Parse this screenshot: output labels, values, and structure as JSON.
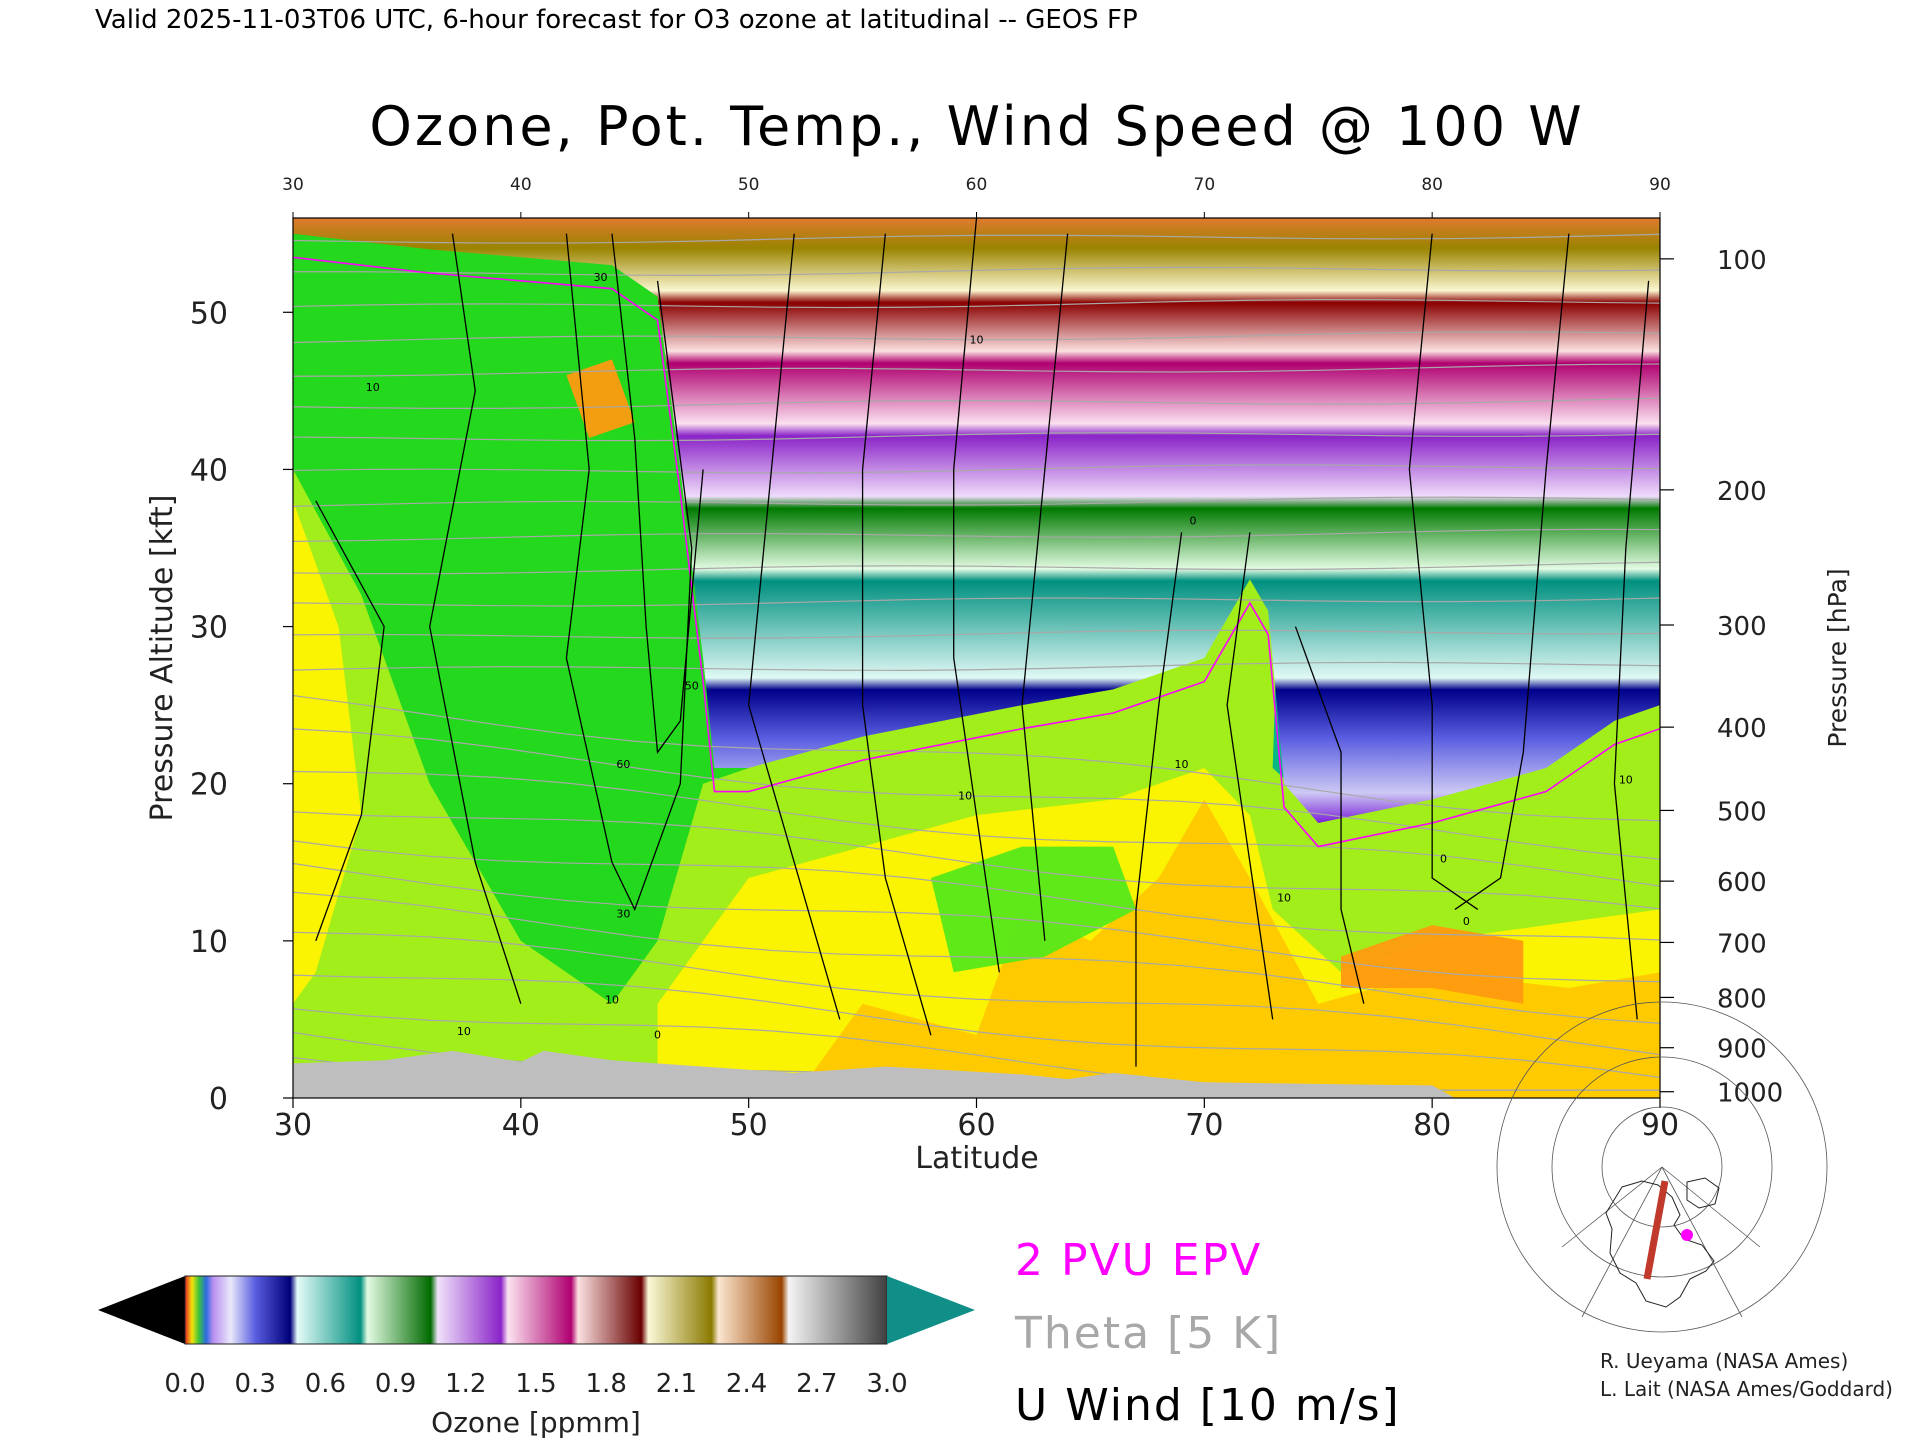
{
  "header": {
    "valid_line": "Valid 2025-11-03T06 UTC, 6-hour forecast for O3 ozone at latitudinal -- GEOS FP"
  },
  "chart_data": {
    "type": "heatmap",
    "title": "Ozone, Pot. Temp., Wind Speed @ 100 W",
    "xlabel": "Latitude",
    "ylabel_left": "Pressure Altitude [kft]",
    "ylabel_right": "Pressure [hPa]",
    "xlim": [
      30,
      90
    ],
    "ylim": [
      0,
      56
    ],
    "x_ticks": [
      "30",
      "40",
      "50",
      "60",
      "70",
      "80",
      "90"
    ],
    "y_ticks": [
      "0",
      "10",
      "20",
      "30",
      "40",
      "50"
    ],
    "y_tick_values": [
      0,
      10,
      20,
      30,
      40,
      50
    ],
    "pressure_ticks": [
      {
        "label": "100",
        "kft": 53.4
      },
      {
        "label": "200",
        "kft": 38.7
      },
      {
        "label": "300",
        "kft": 30.1
      },
      {
        "label": "400",
        "kft": 23.6
      },
      {
        "label": "500",
        "kft": 18.3
      },
      {
        "label": "600",
        "kft": 13.8
      },
      {
        "label": "700",
        "kft": 9.9
      },
      {
        "label": "800",
        "kft": 6.4
      },
      {
        "label": "900",
        "kft": 3.2
      },
      {
        "label": "1000",
        "kft": 0.4
      }
    ],
    "tropopause_kft": [
      {
        "lat": 30,
        "kft": 55
      },
      {
        "lat": 36,
        "kft": 54
      },
      {
        "lat": 40,
        "kft": 53.5
      },
      {
        "lat": 44,
        "kft": 53
      },
      {
        "lat": 46,
        "kft": 51
      },
      {
        "lat": 47,
        "kft": 40
      },
      {
        "lat": 48,
        "kft": 28
      },
      {
        "lat": 48.5,
        "kft": 21
      },
      {
        "lat": 50,
        "kft": 21
      },
      {
        "lat": 55,
        "kft": 23
      },
      {
        "lat": 62,
        "kft": 25
      },
      {
        "lat": 66,
        "kft": 26
      },
      {
        "lat": 70,
        "kft": 28
      },
      {
        "lat": 72,
        "kft": 33
      },
      {
        "lat": 72.8,
        "kft": 31
      },
      {
        "lat": 73.5,
        "kft": 20
      },
      {
        "lat": 75,
        "kft": 17.5
      },
      {
        "lat": 80,
        "kft": 19
      },
      {
        "lat": 85,
        "kft": 21
      },
      {
        "lat": 88,
        "kft": 24
      },
      {
        "lat": 90,
        "kft": 25
      }
    ],
    "u_wind_contours_sample": [
      {
        "label": "30",
        "lat": 43.5,
        "kft": 52
      },
      {
        "label": "50",
        "lat": 47.5,
        "kft": 26
      },
      {
        "label": "60",
        "lat": 44.5,
        "kft": 21
      },
      {
        "label": "30",
        "lat": 44.5,
        "kft": 11.5
      },
      {
        "label": "10",
        "lat": 33.5,
        "kft": 45
      },
      {
        "label": "10",
        "lat": 37.5,
        "kft": 4
      },
      {
        "label": "10",
        "lat": 44,
        "kft": 6
      },
      {
        "label": "10",
        "lat": 59.5,
        "kft": 19
      },
      {
        "label": "10",
        "lat": 60,
        "kft": 48
      },
      {
        "label": "10",
        "lat": 69,
        "kft": 21
      },
      {
        "label": "10",
        "lat": 73.5,
        "kft": 12.5
      },
      {
        "label": "10",
        "lat": 88.5,
        "kft": 20
      },
      {
        "label": "0",
        "lat": 69.5,
        "kft": 36.5
      },
      {
        "label": "0",
        "lat": 80.5,
        "kft": 15
      },
      {
        "label": "0",
        "lat": 81.5,
        "kft": 11
      },
      {
        "label": "0",
        "lat": 46,
        "kft": 3.8
      }
    ],
    "colorbar": {
      "label": "Ozone [ppmm]",
      "ticks": [
        "0.0",
        "0.3",
        "0.6",
        "0.9",
        "1.2",
        "1.5",
        "1.8",
        "2.1",
        "2.4",
        "2.7",
        "3.0"
      ],
      "range": [
        0.0,
        3.0
      ]
    },
    "legend": {
      "epv": "2 PVU EPV",
      "theta": "Theta [5 K]",
      "uwind": "U Wind [10 m/s]",
      "epv_color": "#ff00ff",
      "theta_color": "#a8a8a8"
    },
    "terrain_color": "#bebebe"
  },
  "credits": {
    "line1": "R. Ueyama (NASA Ames)",
    "line2": "L. Lait (NASA Ames/Goddard)"
  },
  "inset_map": {
    "section_color": "#c0392b",
    "point_color": "#ff00ff"
  }
}
